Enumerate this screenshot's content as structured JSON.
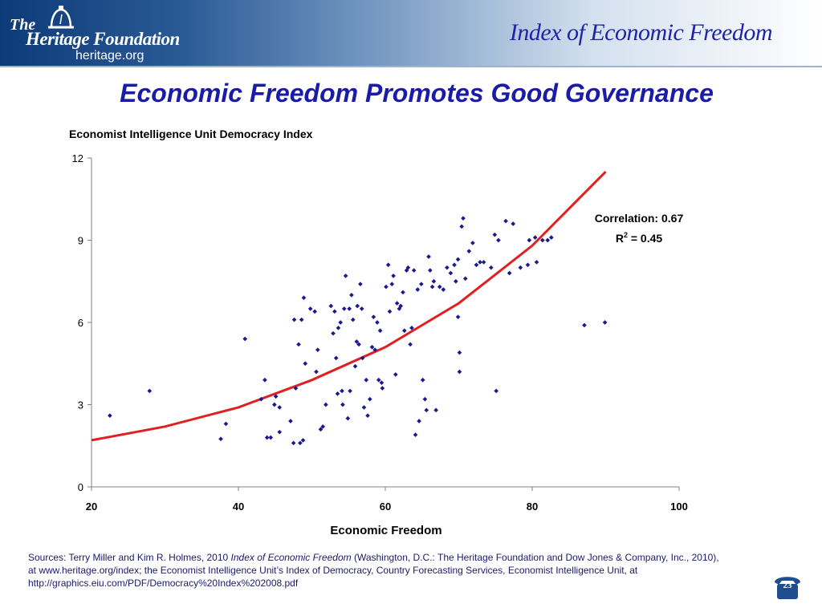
{
  "header": {
    "logo_the": "The",
    "logo_name": "Heritage Foundation",
    "logo_url": "heritage.org",
    "title": "Index of Economic Freedom"
  },
  "slide_title": "Economic Freedom Promotes Good Governance",
  "chart_data": {
    "type": "scatter",
    "title": "Economist Intelligence Unit Democracy Index",
    "xlabel": "Economic Freedom",
    "ylabel": "Economist Intelligence Unit Democracy Index",
    "xlim": [
      20,
      100
    ],
    "ylim": [
      0,
      12
    ],
    "xticks": [
      20,
      40,
      60,
      80,
      100
    ],
    "yticks": [
      0,
      3,
      6,
      9,
      12
    ],
    "grid": false,
    "marker_color": "#1a1a8c",
    "trendline_color": "#e02020",
    "annotations": {
      "correlation": "Correlation: 0.67",
      "r2_prefix": "R",
      "r2_sup": "2",
      "r2_rest": " = 0.45"
    },
    "trendline": {
      "type": "exponential",
      "x": [
        20,
        30,
        40,
        50,
        60,
        70,
        80,
        90
      ],
      "y": [
        1.7,
        2.2,
        2.9,
        3.9,
        5.1,
        6.7,
        8.8,
        11.5
      ]
    },
    "points": [
      [
        22.5,
        2.6
      ],
      [
        27.9,
        3.5
      ],
      [
        37.6,
        1.75
      ],
      [
        38.3,
        2.3
      ],
      [
        40.9,
        5.4
      ],
      [
        43.1,
        3.2
      ],
      [
        43.6,
        3.9
      ],
      [
        43.9,
        1.8
      ],
      [
        44.4,
        1.8
      ],
      [
        44.9,
        3.0
      ],
      [
        45.1,
        3.3
      ],
      [
        45.6,
        2.9
      ],
      [
        45.6,
        2.0
      ],
      [
        47.1,
        2.4
      ],
      [
        47.5,
        1.6
      ],
      [
        47.6,
        6.1
      ],
      [
        47.8,
        3.6
      ],
      [
        48.2,
        5.2
      ],
      [
        48.4,
        1.6
      ],
      [
        48.6,
        6.1
      ],
      [
        48.8,
        1.7
      ],
      [
        48.9,
        6.9
      ],
      [
        49.1,
        4.5
      ],
      [
        49.8,
        6.5
      ],
      [
        50.4,
        6.4
      ],
      [
        50.6,
        4.2
      ],
      [
        50.8,
        5.0
      ],
      [
        51.2,
        2.1
      ],
      [
        51.5,
        2.2
      ],
      [
        51.9,
        3.0
      ],
      [
        52.6,
        6.6
      ],
      [
        52.9,
        5.6
      ],
      [
        53.1,
        6.4
      ],
      [
        53.3,
        4.7
      ],
      [
        53.5,
        3.4
      ],
      [
        53.6,
        5.8
      ],
      [
        53.9,
        6.0
      ],
      [
        54.1,
        3.5
      ],
      [
        54.2,
        3.0
      ],
      [
        54.4,
        6.5
      ],
      [
        54.6,
        7.7
      ],
      [
        54.9,
        2.5
      ],
      [
        55.1,
        6.5
      ],
      [
        55.2,
        3.5
      ],
      [
        55.4,
        7.0
      ],
      [
        55.6,
        6.1
      ],
      [
        55.9,
        4.4
      ],
      [
        56.1,
        5.3
      ],
      [
        56.2,
        6.6
      ],
      [
        56.4,
        5.2
      ],
      [
        56.6,
        7.4
      ],
      [
        56.8,
        6.5
      ],
      [
        56.9,
        4.7
      ],
      [
        57.1,
        2.9
      ],
      [
        57.4,
        3.9
      ],
      [
        57.6,
        2.6
      ],
      [
        57.9,
        3.2
      ],
      [
        58.2,
        5.1
      ],
      [
        58.4,
        6.2
      ],
      [
        58.6,
        5.0
      ],
      [
        58.9,
        6.0
      ],
      [
        59.1,
        3.9
      ],
      [
        59.3,
        5.7
      ],
      [
        59.5,
        3.8
      ],
      [
        59.6,
        3.6
      ],
      [
        60.1,
        7.3
      ],
      [
        60.4,
        8.1
      ],
      [
        60.6,
        6.4
      ],
      [
        60.9,
        7.4
      ],
      [
        61.1,
        7.7
      ],
      [
        61.4,
        4.1
      ],
      [
        61.6,
        6.7
      ],
      [
        61.9,
        6.5
      ],
      [
        62.1,
        6.6
      ],
      [
        62.4,
        7.1
      ],
      [
        62.6,
        5.7
      ],
      [
        62.9,
        7.9
      ],
      [
        63.1,
        8.0
      ],
      [
        63.4,
        5.2
      ],
      [
        63.6,
        5.8
      ],
      [
        63.9,
        7.9
      ],
      [
        64.1,
        1.9
      ],
      [
        64.4,
        7.2
      ],
      [
        64.6,
        2.4
      ],
      [
        64.9,
        7.4
      ],
      [
        65.1,
        3.9
      ],
      [
        65.4,
        3.2
      ],
      [
        65.6,
        2.8
      ],
      [
        65.9,
        8.4
      ],
      [
        66.1,
        7.9
      ],
      [
        66.4,
        7.3
      ],
      [
        66.6,
        7.5
      ],
      [
        66.9,
        2.8
      ],
      [
        67.4,
        7.3
      ],
      [
        67.9,
        7.2
      ],
      [
        68.4,
        8.0
      ],
      [
        68.9,
        7.8
      ],
      [
        69.4,
        8.1
      ],
      [
        69.6,
        7.5
      ],
      [
        69.9,
        8.3
      ],
      [
        69.9,
        6.2
      ],
      [
        70.1,
        4.9
      ],
      [
        70.1,
        4.2
      ],
      [
        70.4,
        9.5
      ],
      [
        70.6,
        9.8
      ],
      [
        70.9,
        7.6
      ],
      [
        71.4,
        8.6
      ],
      [
        71.9,
        8.9
      ],
      [
        72.4,
        8.1
      ],
      [
        72.9,
        8.2
      ],
      [
        73.4,
        8.2
      ],
      [
        74.4,
        8.0
      ],
      [
        74.9,
        9.2
      ],
      [
        75.1,
        3.5
      ],
      [
        75.4,
        9.0
      ],
      [
        76.4,
        9.7
      ],
      [
        76.9,
        7.8
      ],
      [
        77.4,
        9.6
      ],
      [
        78.4,
        8.0
      ],
      [
        79.4,
        8.1
      ],
      [
        79.6,
        9.0
      ],
      [
        80.4,
        9.1
      ],
      [
        80.6,
        8.2
      ],
      [
        81.4,
        9.0
      ],
      [
        82.1,
        9.0
      ],
      [
        82.6,
        9.1
      ],
      [
        87.1,
        5.9
      ],
      [
        89.9,
        6.0
      ]
    ]
  },
  "sources": {
    "line1_a": "Sources: Terry Miller and Kim R. Holmes, 2010 ",
    "line1_italic": "Index of Economic Freedom",
    "line1_b": " (Washington, D.C.: The Heritage Foundation and Dow Jones & Company, Inc., 2010),",
    "line2": "at www.heritage.org/index; the Economist Intelligence Unit’s Index of Democracy, Country Forecasting Services, Economist Intelligence Unit, at",
    "line3": "http://graphics.eiu.com/PDF/Democracy%20Index%202008.pdf"
  },
  "page_number": "23"
}
